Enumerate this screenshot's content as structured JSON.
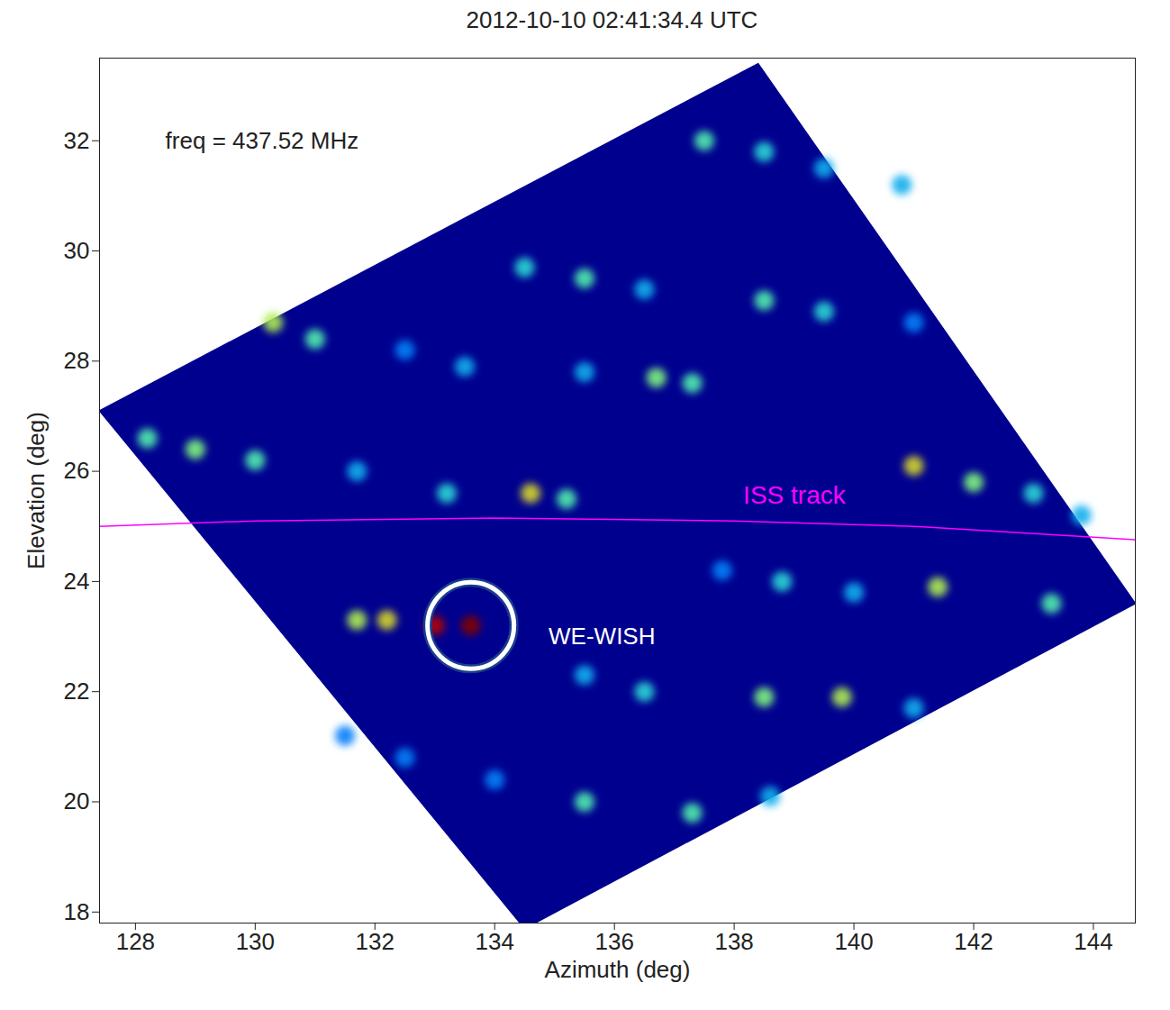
{
  "chart_data": {
    "type": "heatmap",
    "title": "2012-10-10 02:41:34.4 UTC",
    "x_label": "Azimuth (deg)",
    "y_label": "Elevation (deg)",
    "xlim": [
      127.4,
      144.7
    ],
    "xticks": [
      128,
      130,
      132,
      134,
      136,
      138,
      140,
      142,
      144
    ],
    "ylim": [
      17.8,
      33.5
    ],
    "yticks": [
      18,
      20,
      22,
      24,
      26,
      28,
      30,
      32
    ],
    "footprint": {
      "az": [
        127.4,
        138.4,
        144.7,
        134.5,
        127.4
      ],
      "el": [
        27.1,
        33.4,
        23.6,
        17.7,
        27.1
      ]
    },
    "cells": {
      "az": [
        137.5,
        138.5,
        139.5,
        140.8,
        134.5,
        135.5,
        136.5,
        138.5,
        139.5,
        141.0,
        130.3,
        131.0,
        132.5,
        133.5,
        135.5,
        136.7,
        137.3,
        128.2,
        129.0,
        130.0,
        131.7,
        133.2,
        134.6,
        135.2,
        141.0,
        142.0,
        143.0,
        143.8,
        137.8,
        138.8,
        140.0,
        141.4,
        143.3,
        131.7,
        132.2,
        133.0,
        133.6,
        135.5,
        136.5,
        138.5,
        139.8,
        141.0,
        134.0,
        135.5,
        137.3,
        138.6,
        131.5,
        132.5
      ],
      "el": [
        32.0,
        31.8,
        31.5,
        31.2,
        29.7,
        29.5,
        29.3,
        29.1,
        28.9,
        28.7,
        28.7,
        28.4,
        28.2,
        27.9,
        27.8,
        27.7,
        27.6,
        26.6,
        26.4,
        26.2,
        26.0,
        25.6,
        25.6,
        25.5,
        26.1,
        25.8,
        25.6,
        25.2,
        24.2,
        24.0,
        23.8,
        23.9,
        23.6,
        23.3,
        23.3,
        23.2,
        23.2,
        22.3,
        22.0,
        21.9,
        21.9,
        21.7,
        20.4,
        20.0,
        19.8,
        20.1,
        21.2,
        20.8
      ],
      "values": [
        0.45,
        0.4,
        0.35,
        0.35,
        0.4,
        0.45,
        0.35,
        0.45,
        0.4,
        0.3,
        0.55,
        0.45,
        0.3,
        0.35,
        0.35,
        0.5,
        0.45,
        0.45,
        0.5,
        0.45,
        0.35,
        0.4,
        0.6,
        0.45,
        0.6,
        0.5,
        0.4,
        0.35,
        0.3,
        0.4,
        0.35,
        0.55,
        0.45,
        0.55,
        0.6,
        0.92,
        1.0,
        0.35,
        0.4,
        0.5,
        0.55,
        0.35,
        0.3,
        0.45,
        0.45,
        0.35,
        0.3,
        0.3
      ]
    },
    "clim": [
      0,
      1
    ],
    "series": [
      {
        "name": "ISS track",
        "color": "#ff00ff",
        "x": [
          127.4,
          130,
          134,
          138,
          141,
          144.8
        ],
        "y": [
          25.0,
          25.1,
          25.15,
          25.1,
          25.0,
          24.75
        ]
      }
    ],
    "annotations": [
      {
        "text": "freq = 437.52 MHz",
        "x": 128.5,
        "y": 32.0,
        "color": "#222222"
      },
      {
        "text": "WE-WISH",
        "x": 134.9,
        "y": 23.0,
        "color": "#ffffff"
      }
    ]
  }
}
